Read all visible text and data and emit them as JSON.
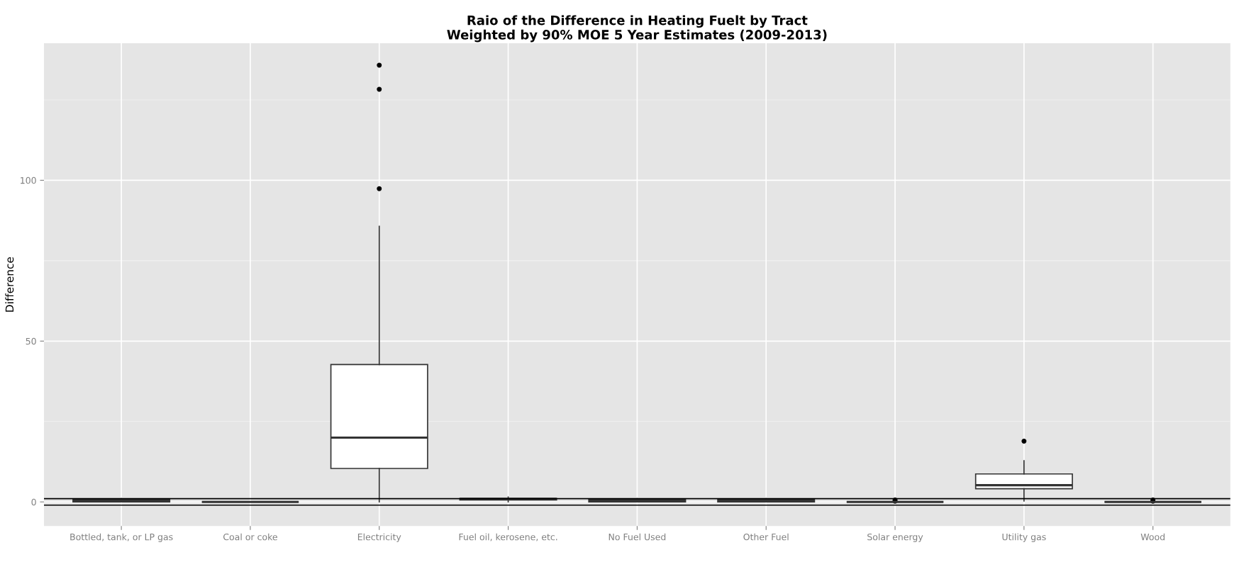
{
  "chart_data": {
    "type": "box",
    "title": "Raio of the Difference in Heating Fuelt by Tract\nWeighted by 90% MOE 5 Year Estimates (2009-2013)",
    "ylabel": "Difference",
    "categories": [
      "Bottled, tank, or LP gas",
      "Coal or coke",
      "Electricity",
      "Fuel oil, kerosene, etc.",
      "No Fuel Used",
      "Other Fuel",
      "Solar energy",
      "Utility gas",
      "Wood"
    ],
    "boxes": [
      {
        "low": 0,
        "q1": 0,
        "median": 0.4,
        "q3": 0.9,
        "high": 1
      },
      {
        "low": 0,
        "q1": 0,
        "median": 0,
        "q3": 0,
        "high": 0
      },
      {
        "low": 0,
        "q1": 10.4,
        "median": 20.0,
        "q3": 42.7,
        "high": 85.7,
        "outliers": [
          97.4,
          128.3,
          135.8
        ]
      },
      {
        "low": 0,
        "q1": 0.6,
        "median": 0.9,
        "q3": 1.1,
        "high": 1.5
      },
      {
        "low": 0,
        "q1": 0,
        "median": 0.4,
        "q3": 0.9,
        "high": 1
      },
      {
        "low": 0,
        "q1": 0,
        "median": 0.4,
        "q3": 0.9,
        "high": 1
      },
      {
        "low": 0,
        "q1": 0,
        "median": 0,
        "q3": 0,
        "high": 0,
        "outliers": [
          0.2,
          0.6
        ]
      },
      {
        "low": 0.3,
        "q1": 4.1,
        "median": 5.2,
        "q3": 8.7,
        "high": 12.8,
        "outliers": [
          18.9
        ]
      },
      {
        "low": 0,
        "q1": 0,
        "median": 0,
        "q3": 0,
        "high": 0,
        "outliers": [
          0.2,
          0.6
        ]
      }
    ],
    "ylim": [
      -7.5,
      142.6
    ],
    "yticks": [
      0,
      50,
      100
    ],
    "ref_lines": [
      {
        "axis": "y",
        "value": 1,
        "color": "#000000"
      },
      {
        "axis": "y",
        "value": -1,
        "color": "#000000"
      }
    ],
    "grid": true
  }
}
